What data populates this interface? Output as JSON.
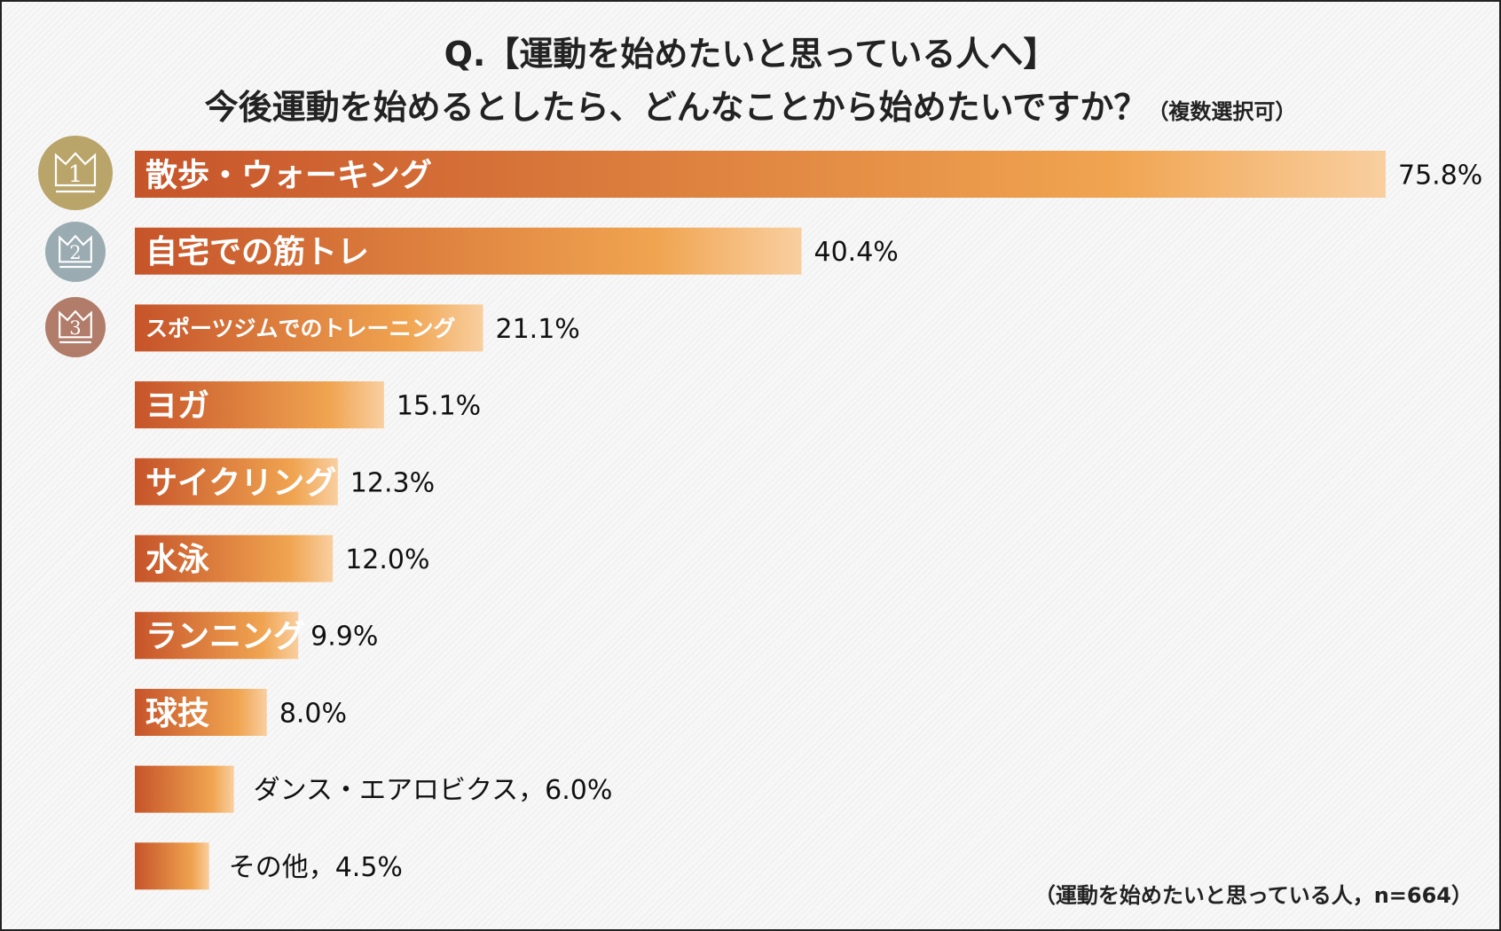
{
  "title": {
    "line1": "Q.【運動を始めたいと思っている人へ】",
    "line2": "今後運動を始めるとしたら、どんなことから始めたいですか？",
    "note": "（複数選択可）"
  },
  "footnote": "（運動を始めたいと思っている人，n=664）",
  "rank_badges": [
    {
      "rank": "1",
      "color": "#b9a46a"
    },
    {
      "rank": "2",
      "color": "#9aabb2"
    },
    {
      "rank": "3",
      "color": "#b17c6a"
    }
  ],
  "colors": {
    "bar_start": "#c6542a",
    "bar_mid": "#f0a450",
    "bar_end": "#f9cfa0",
    "bar_label": "#ffffff",
    "value_label": "#111111"
  },
  "chart_data": {
    "type": "bar",
    "orientation": "horizontal",
    "categories": [
      "散歩・ウォーキング",
      "自宅での筋トレ",
      "スポーツジムでのトレーニング",
      "ヨガ",
      "サイクリング",
      "水泳",
      "ランニング",
      "球技",
      "ダンス・エアロビクス",
      "その他"
    ],
    "values": [
      75.8,
      40.4,
      21.1,
      15.1,
      12.3,
      12.0,
      9.9,
      8.0,
      6.0,
      4.5
    ],
    "value_labels": [
      "75.8%",
      "40.4%",
      "21.1%",
      "15.1%",
      "12.3%",
      "12.0%",
      "9.9%",
      "8.0%",
      "ダンス・エアロビクス，6.0%",
      "その他，4.5%"
    ],
    "label_inside_bar": [
      true,
      true,
      true,
      true,
      true,
      true,
      true,
      true,
      false,
      false
    ],
    "xlim": [
      0,
      75.8
    ],
    "grid": false,
    "legend": "none"
  }
}
